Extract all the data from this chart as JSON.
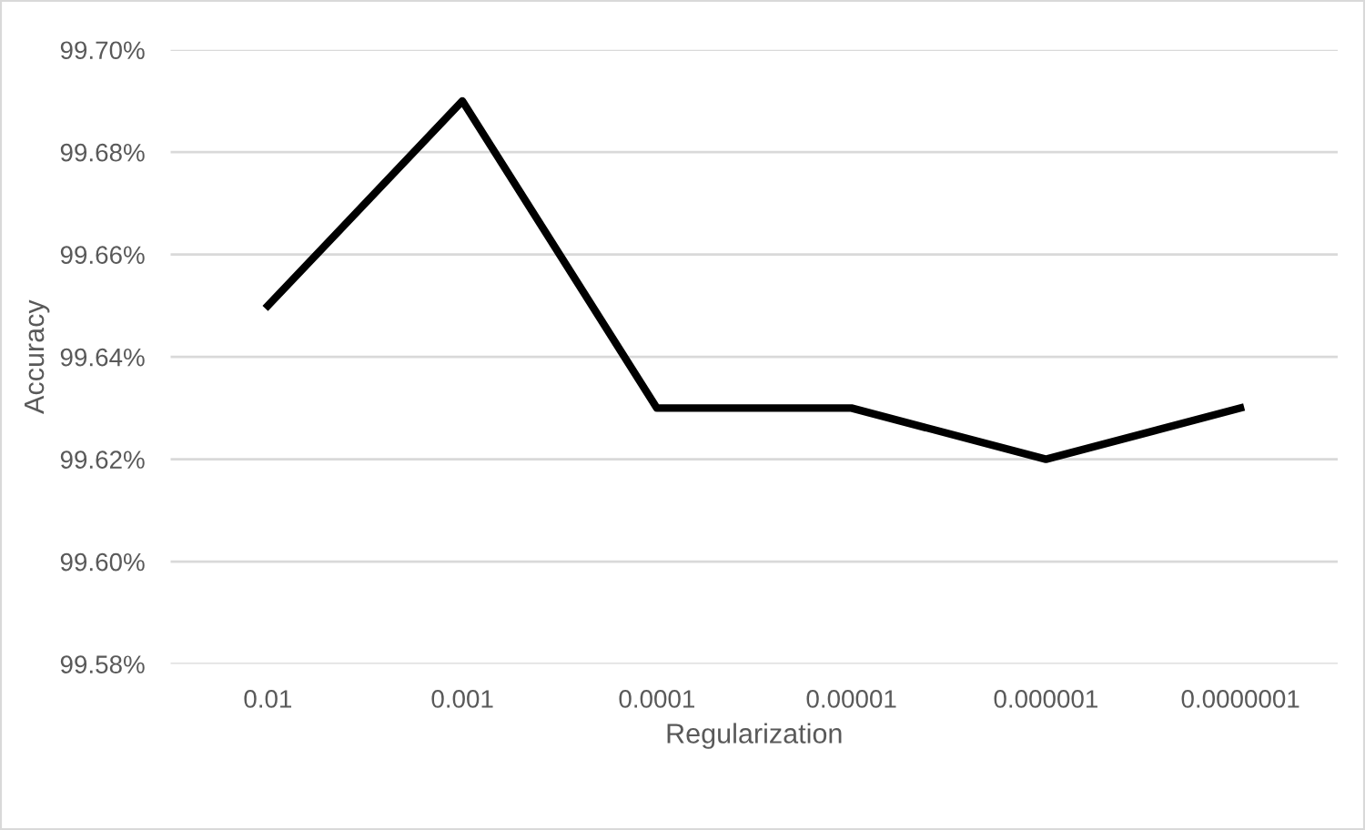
{
  "chart_data": {
    "type": "line",
    "xlabel": "Regularization",
    "ylabel": "Accuracy",
    "categories": [
      "0.01",
      "0.001",
      "0.0001",
      "0.00001",
      "0.000001",
      "0.0000001"
    ],
    "series": [
      {
        "color": "#000000",
        "values": [
          99.65,
          99.69,
          99.63,
          99.63,
          99.62,
          99.63
        ]
      }
    ],
    "ylim": [
      99.58,
      99.7
    ],
    "yticks": [
      {
        "value": 99.58,
        "label": "99.58%"
      },
      {
        "value": 99.6,
        "label": "99.60%"
      },
      {
        "value": 99.62,
        "label": "99.62%"
      },
      {
        "value": 99.64,
        "label": "99.64%"
      },
      {
        "value": 99.66,
        "label": "99.66%"
      },
      {
        "value": 99.68,
        "label": "99.68%"
      },
      {
        "value": 99.7,
        "label": "99.70%"
      }
    ],
    "grid": "y",
    "marker": "none",
    "line_style": "solid"
  }
}
